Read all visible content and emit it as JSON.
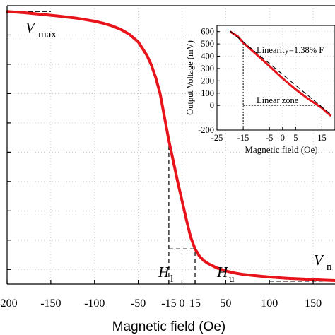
{
  "chart_data": [
    {
      "type": "line",
      "xlabel": "Magnetic field (Oe)",
      "ylabel": "",
      "xlim": [
        -200,
        175
      ],
      "ylim": [
        -250,
        700
      ],
      "x_ticks": [
        -200,
        -150,
        -100,
        -50,
        -15,
        0,
        15,
        50,
        100,
        150
      ],
      "x_tick_labels": [
        "-200",
        "-150",
        "-100",
        "-50",
        "-15",
        "0",
        "15",
        "50",
        "100",
        "150"
      ],
      "series": [
        {
          "name": "",
          "color": "#e8141b",
          "x": [
            -200,
            -180,
            -160,
            -140,
            -120,
            -100,
            -90,
            -80,
            -70,
            -60,
            -50,
            -40,
            -35,
            -30,
            -25,
            -20,
            -15,
            -10,
            -5,
            0,
            5,
            10,
            15,
            20,
            25,
            30,
            40,
            50,
            60,
            70,
            80,
            100,
            120,
            140,
            160,
            175
          ],
          "y": [
            680,
            676,
            670,
            664,
            657,
            647,
            640,
            631,
            619,
            602,
            576,
            530,
            497,
            455,
            400,
            320,
            240,
            170,
            100,
            35,
            -30,
            -90,
            -130,
            -155,
            -170,
            -180,
            -195,
            -205,
            -212,
            -217,
            -220,
            -226,
            -230,
            -233,
            -236,
            -238
          ]
        }
      ],
      "reference_lines": [
        {
          "kind": "horizontal",
          "y": 680,
          "x_from": -200,
          "x_to": -150
        },
        {
          "kind": "horizontal",
          "y": -240,
          "x_from": 100,
          "x_to": 175
        },
        {
          "kind": "vertical",
          "x": -15,
          "y_from": -250,
          "y_to": 240
        },
        {
          "kind": "vertical",
          "x": 15,
          "y_from": -250,
          "y_to": -130
        },
        {
          "kind": "horizontal",
          "y": -130,
          "x_from": -15,
          "x_to": 15
        }
      ],
      "annotations": {
        "vmax": "V",
        "vmax_sub": "max",
        "vmin": "V",
        "vmin_sub": "n",
        "hl": "H",
        "hl_sub": "l",
        "hu": "H",
        "hu_sub": "u"
      }
    },
    {
      "type": "line",
      "xlabel": "Magnetic field (Oe)",
      "ylabel": "Output Voltage (mV)",
      "xlim": [
        -25,
        20
      ],
      "ylim": [
        -200,
        650
      ],
      "x_ticks": [
        -25,
        -15,
        -5,
        0,
        5,
        15
      ],
      "x_tick_labels": [
        "-25",
        "-15",
        "-5",
        "0",
        "5",
        "15"
      ],
      "y_ticks": [
        -200,
        0,
        100,
        200,
        300,
        400,
        500,
        600
      ],
      "y_tick_labels": [
        "-200",
        "0",
        "100",
        "200",
        "300",
        "400",
        "500",
        "600"
      ],
      "series": [
        {
          "name": "",
          "color": "#e8141b",
          "x": [
            -20,
            -17,
            -15,
            -10,
            -5,
            0,
            5,
            10,
            15,
            17,
            18.5
          ],
          "y": [
            600,
            560,
            510,
            415,
            320,
            220,
            130,
            50,
            -20,
            -60,
            -85
          ]
        }
      ],
      "fit_line": {
        "x": [
          -20,
          18.5
        ],
        "y": [
          605,
          -75
        ]
      },
      "linear_zone": {
        "x_from": -15,
        "x_to": 15,
        "y": 0
      },
      "annotations": {
        "linearity": "Linearity=1.38% F",
        "linear_zone_label": "Linear zone"
      }
    }
  ]
}
